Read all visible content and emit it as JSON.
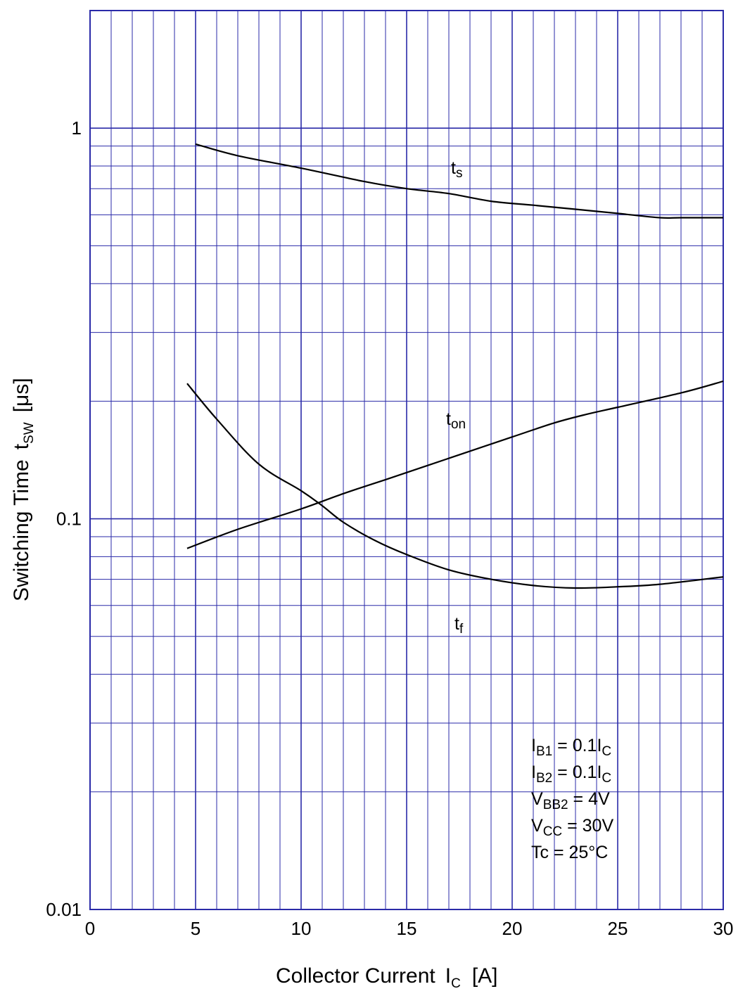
{
  "chart_data": {
    "type": "line",
    "x_axis": {
      "label_main": "Collector Current",
      "label_symbol": "I",
      "label_symbol_sub": "C",
      "label_unit": "[A]",
      "range": [
        0,
        30
      ],
      "scale": "linear",
      "ticks": [
        0,
        5,
        10,
        15,
        20,
        25,
        30
      ],
      "tick_labels": [
        "0",
        "5",
        "10",
        "15",
        "20",
        "25",
        "30"
      ]
    },
    "y_axis": {
      "label_main": "Switching Time",
      "label_symbol": "t",
      "label_symbol_sub": "SW",
      "label_unit": "[μs]",
      "range": [
        0.01,
        2
      ],
      "scale": "log",
      "ticks": [
        0.01,
        0.1,
        1
      ],
      "tick_labels": [
        "0.01",
        "0.1",
        "1"
      ]
    },
    "grid": true,
    "grid_color": "#2a2aa8",
    "line_color": "#000000",
    "series": [
      {
        "name": "ts",
        "label_main": "t",
        "label_sub": "s",
        "x": [
          5,
          7,
          10,
          13,
          15,
          17,
          19,
          21,
          23,
          25,
          27,
          28,
          30
        ],
        "y": [
          0.91,
          0.85,
          0.79,
          0.73,
          0.7,
          0.68,
          0.65,
          0.635,
          0.62,
          0.605,
          0.59,
          0.59,
          0.59
        ]
      },
      {
        "name": "ton",
        "label_main": "t",
        "label_sub": "on",
        "x": [
          4.6,
          7,
          10,
          12,
          14,
          16,
          18,
          20,
          22,
          23.5,
          25,
          28,
          30
        ],
        "y": [
          0.084,
          0.094,
          0.106,
          0.116,
          0.126,
          0.137,
          0.149,
          0.162,
          0.176,
          0.185,
          0.193,
          0.21,
          0.225
        ]
      },
      {
        "name": "tf",
        "label_main": "t",
        "label_sub": "f",
        "x": [
          4.6,
          6,
          8,
          10,
          11,
          12,
          13.5,
          15,
          17,
          19,
          21,
          23,
          25,
          27,
          30
        ],
        "y": [
          0.222,
          0.18,
          0.138,
          0.118,
          0.108,
          0.098,
          0.088,
          0.081,
          0.074,
          0.07,
          0.0675,
          0.0665,
          0.067,
          0.068,
          0.071
        ]
      }
    ],
    "conditions": [
      {
        "main": "I",
        "sub": "B1",
        "rest": " = 0.1I",
        "rest_sub": "C"
      },
      {
        "main": "I",
        "sub": "B2",
        "rest": " = 0.1I",
        "rest_sub": "C"
      },
      {
        "main": "V",
        "sub": "BB2",
        "rest": " = 4V",
        "rest_sub": ""
      },
      {
        "main": "V",
        "sub": "CC",
        "rest": " = 30V",
        "rest_sub": ""
      },
      {
        "main": "Tc = 25°C",
        "sub": "",
        "rest": "",
        "rest_sub": ""
      }
    ]
  }
}
